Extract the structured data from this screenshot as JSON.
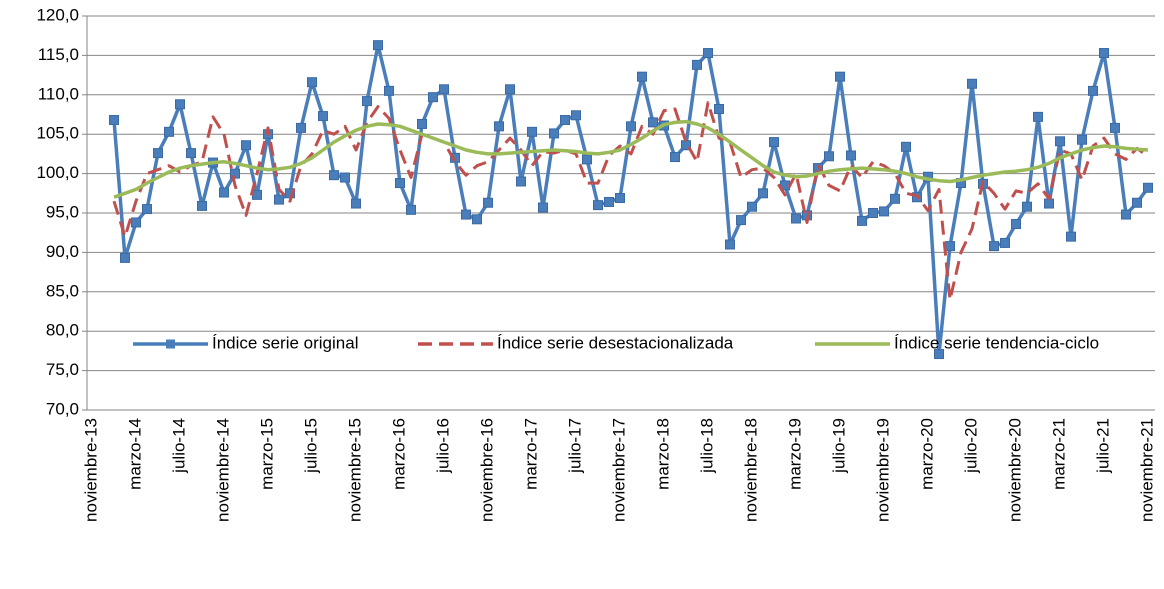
{
  "chart_data": {
    "type": "line",
    "categories": [
      "noviembre-13",
      null,
      null,
      null,
      "marzo-14",
      null,
      null,
      null,
      "julio-14",
      null,
      null,
      null,
      "noviembre-14",
      null,
      null,
      null,
      "marzo-15",
      null,
      null,
      null,
      "julio-15",
      null,
      null,
      null,
      "noviembre-15",
      null,
      null,
      null,
      "marzo-16",
      null,
      null,
      null,
      "julio-16",
      null,
      null,
      null,
      "noviembre-16",
      null,
      null,
      null,
      "marzo-17",
      null,
      null,
      null,
      "julio-17",
      null,
      null,
      null,
      "noviembre-17",
      null,
      null,
      null,
      "marzo-18",
      null,
      null,
      null,
      "julio-18",
      null,
      null,
      null,
      "noviembre-18",
      null,
      null,
      null,
      "marzo-19",
      null,
      null,
      null,
      "julio-19",
      null,
      null,
      null,
      "noviembre-19",
      null,
      null,
      null,
      "marzo-20",
      null,
      null,
      null,
      "julio-20",
      null,
      null,
      null,
      "noviembre-20",
      null,
      null,
      null,
      "marzo-21",
      null,
      null,
      null,
      "julio-21",
      null,
      null,
      null,
      "noviembre-21"
    ],
    "series": [
      {
        "name": "Índice serie original",
        "color": "#4a7ebb",
        "marker": "square",
        "values": [
          null,
          null,
          106.8,
          89.3,
          93.8,
          95.5,
          102.6,
          105.3,
          108.8,
          102.6,
          95.9,
          101.4,
          97.6,
          100.0,
          103.6,
          97.3,
          105.0,
          96.7,
          97.5,
          105.8,
          111.6,
          107.3,
          99.8,
          99.5,
          96.2,
          109.2,
          116.3,
          110.5,
          98.8,
          95.4,
          106.3,
          109.7,
          110.7,
          102.0,
          94.8,
          94.2,
          96.3,
          106.0,
          110.7,
          99.0,
          105.3,
          95.7,
          105.1,
          106.8,
          107.4,
          101.8,
          96.0,
          96.4,
          96.9,
          106.0,
          112.3,
          106.5,
          106.1,
          102.1,
          103.6,
          113.8,
          115.3,
          108.2,
          91.0,
          94.1,
          95.8,
          97.5,
          104.0,
          98.5,
          94.3,
          94.7,
          100.7,
          102.2,
          112.3,
          102.3,
          94.0,
          95.0,
          95.2,
          96.8,
          103.4,
          97.0,
          99.6,
          77.1,
          90.8,
          98.8,
          111.4,
          98.7,
          90.8,
          91.2,
          93.6,
          95.8,
          107.2,
          96.2,
          104.1,
          92.0,
          104.3,
          110.5,
          115.3,
          105.8,
          94.8,
          96.3,
          98.2
        ]
      },
      {
        "name": "Índice serie desestacionalizada",
        "color": "#c0504d",
        "dashed": true,
        "values": [
          null,
          null,
          96.5,
          92,
          96.5,
          100,
          100.5,
          101,
          100.2,
          101,
          101.5,
          107.2,
          105,
          98.5,
          94.7,
          100,
          105.8,
          98,
          96.5,
          101,
          102.5,
          105.5,
          105,
          106,
          103,
          106.5,
          108.5,
          107,
          103,
          99.5,
          105,
          104.5,
          104,
          101.5,
          99.8,
          101,
          101.5,
          103,
          104.5,
          103,
          101,
          102.8,
          102.6,
          103,
          102.5,
          98.8,
          98.8,
          102.3,
          103.5,
          102.5,
          106,
          105,
          108,
          108.2,
          104,
          101.5,
          109,
          104.5,
          104,
          99.5,
          100.5,
          100.7,
          99.5,
          97.3,
          100,
          93.8,
          101.2,
          98.5,
          97.8,
          101,
          99.5,
          101.5,
          101,
          100,
          97.5,
          97.2,
          95.3,
          98,
          84,
          90,
          93,
          99,
          97.5,
          95.5,
          97.8,
          97.5,
          98.7,
          96.8,
          103,
          102.5,
          99.2,
          103.5,
          104.5,
          102.5,
          101.8,
          103.2,
          102.2
        ]
      },
      {
        "name": "Índice serie tendencia-ciclo",
        "color": "#9bbb59",
        "values": [
          null,
          null,
          97,
          97.5,
          98,
          98.8,
          99.5,
          100.2,
          100.7,
          101,
          101.2,
          101.4,
          101.5,
          101.3,
          101,
          100.7,
          100.5,
          100.6,
          100.8,
          101.3,
          102,
          103,
          104,
          104.8,
          105.5,
          106,
          106.3,
          106.2,
          106,
          105.5,
          105,
          104.5,
          104,
          103.5,
          103,
          102.7,
          102.5,
          102.5,
          102.6,
          102.7,
          102.8,
          102.9,
          103,
          102.9,
          102.8,
          102.6,
          102.5,
          102.7,
          103,
          103.7,
          104.5,
          105.4,
          106.2,
          106.5,
          106.6,
          106.3,
          105.8,
          105,
          104,
          103,
          102,
          101,
          100.2,
          99.8,
          99.6,
          99.7,
          100,
          100.3,
          100.5,
          100.6,
          100.7,
          100.6,
          100.5,
          100.3,
          100,
          99.6,
          99.3,
          99.1,
          99,
          99.2,
          99.5,
          99.8,
          100,
          100.2,
          100.3,
          100.5,
          100.8,
          101.3,
          102,
          102.5,
          103,
          103.3,
          103.5,
          103.4,
          103.2,
          103.1,
          103
        ]
      }
    ],
    "ylim": [
      70,
      120
    ],
    "yticks": [
      {
        "value": 70,
        "label": "70,0"
      },
      {
        "value": 75,
        "label": "75,0"
      },
      {
        "value": 80,
        "label": "80,0"
      },
      {
        "value": 85,
        "label": "85,0"
      },
      {
        "value": 90,
        "label": "90,0"
      },
      {
        "value": 95,
        "label": "95,0"
      },
      {
        "value": 100,
        "label": "100,0"
      },
      {
        "value": 105,
        "label": "105,0"
      },
      {
        "value": 110,
        "label": "110,0"
      },
      {
        "value": 115,
        "label": "115,0"
      },
      {
        "value": 120,
        "label": "120,0"
      }
    ],
    "grid": true
  }
}
